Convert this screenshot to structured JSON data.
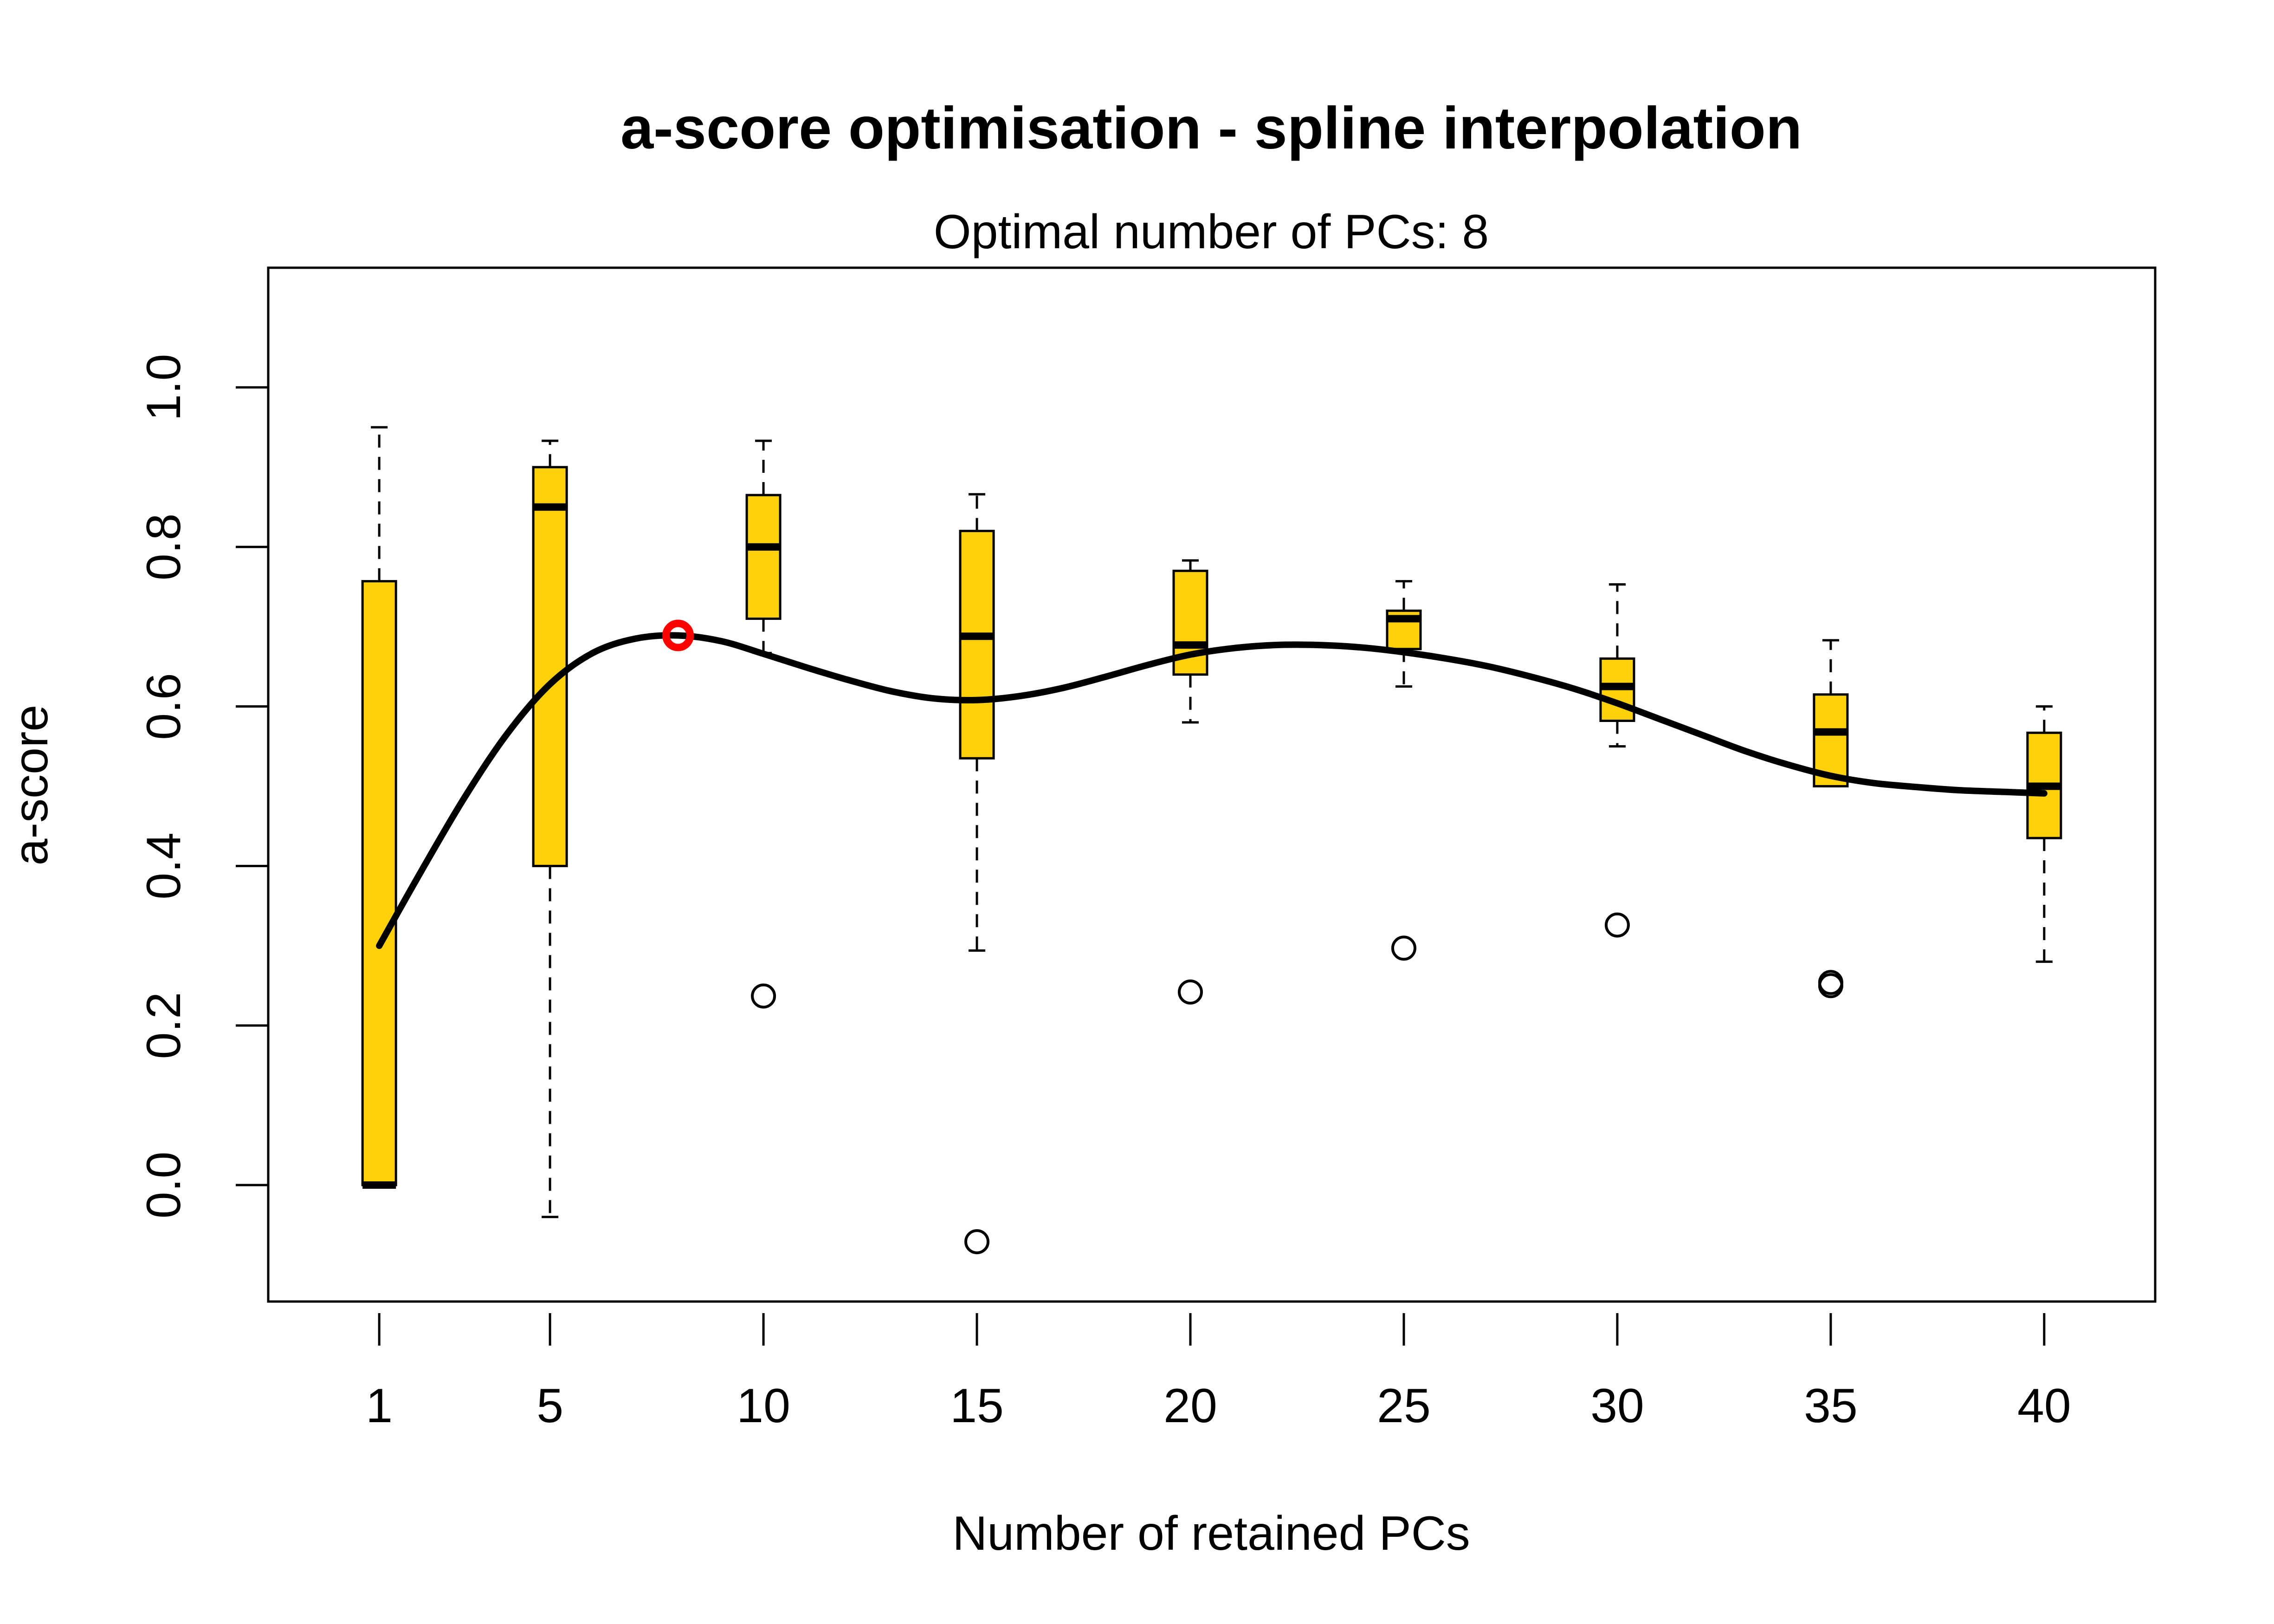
{
  "chart_data": {
    "type": "box",
    "title": "a-score optimisation - spline interpolation",
    "subtitle": "Optimal number of PCs: 8",
    "xlabel": "Number of retained PCs",
    "ylabel": "a-score",
    "xlim": [
      -1.6,
      42.6
    ],
    "ylim": [
      -0.146,
      1.15
    ],
    "x_ticks": [
      1,
      5,
      10,
      15,
      20,
      25,
      30,
      35,
      40
    ],
    "y_ticks": [
      0.0,
      0.2,
      0.4,
      0.6,
      0.8,
      1.0
    ],
    "y_tick_labels": [
      "0.0",
      "0.2",
      "0.4",
      "0.6",
      "0.8",
      "1.0"
    ],
    "box_color": "#FFD10A",
    "optimum_color": "#FF0000",
    "boxes": [
      {
        "x": 1,
        "whisker_low": 0.0,
        "q1": 0.0,
        "median": 0.0,
        "q3": 0.757,
        "whisker_high": 0.95,
        "outliers": []
      },
      {
        "x": 5,
        "whisker_low": -0.04,
        "q1": 0.4,
        "median": 0.85,
        "q3": 0.9,
        "whisker_high": 0.933,
        "outliers": []
      },
      {
        "x": 10,
        "whisker_low": 0.667,
        "q1": 0.71,
        "median": 0.8,
        "q3": 0.865,
        "whisker_high": 0.933,
        "outliers": [
          0.237
        ]
      },
      {
        "x": 15,
        "whisker_low": 0.294,
        "q1": 0.535,
        "median": 0.688,
        "q3": 0.82,
        "whisker_high": 0.866,
        "outliers": [
          -0.071
        ]
      },
      {
        "x": 20,
        "whisker_low": 0.58,
        "q1": 0.64,
        "median": 0.677,
        "q3": 0.77,
        "whisker_high": 0.783,
        "outliers": [
          0.242
        ]
      },
      {
        "x": 25,
        "whisker_low": 0.625,
        "q1": 0.672,
        "median": 0.71,
        "q3": 0.72,
        "whisker_high": 0.757,
        "outliers": [
          0.297
        ]
      },
      {
        "x": 30,
        "whisker_low": 0.55,
        "q1": 0.582,
        "median": 0.625,
        "q3": 0.66,
        "whisker_high": 0.753,
        "outliers": [
          0.326
        ]
      },
      {
        "x": 35,
        "whisker_low": 0.5,
        "q1": 0.5,
        "median": 0.568,
        "q3": 0.615,
        "whisker_high": 0.683,
        "outliers": [
          0.25,
          0.254
        ]
      },
      {
        "x": 40,
        "whisker_low": 0.28,
        "q1": 0.435,
        "median": 0.5,
        "q3": 0.567,
        "whisker_high": 0.6,
        "outliers": []
      }
    ],
    "spline": {
      "x": [
        1,
        2,
        3,
        4,
        5,
        6,
        7,
        8,
        9,
        10,
        11,
        12,
        13,
        14,
        15,
        16,
        17,
        18,
        19,
        20,
        21,
        22,
        23,
        24,
        25,
        26,
        27,
        28,
        29,
        30,
        31,
        32,
        33,
        34,
        35,
        36,
        37,
        38,
        39,
        40
      ],
      "y": [
        0.3,
        0.395,
        0.486,
        0.566,
        0.628,
        0.667,
        0.685,
        0.689,
        0.682,
        0.666,
        0.649,
        0.633,
        0.619,
        0.61,
        0.608,
        0.613,
        0.623,
        0.637,
        0.652,
        0.665,
        0.673,
        0.677,
        0.677,
        0.674,
        0.668,
        0.66,
        0.65,
        0.637,
        0.622,
        0.604,
        0.584,
        0.564,
        0.544,
        0.527,
        0.513,
        0.504,
        0.499,
        0.495,
        0.493,
        0.491
      ]
    },
    "optimum": {
      "x": 8,
      "y": 0.689
    }
  }
}
